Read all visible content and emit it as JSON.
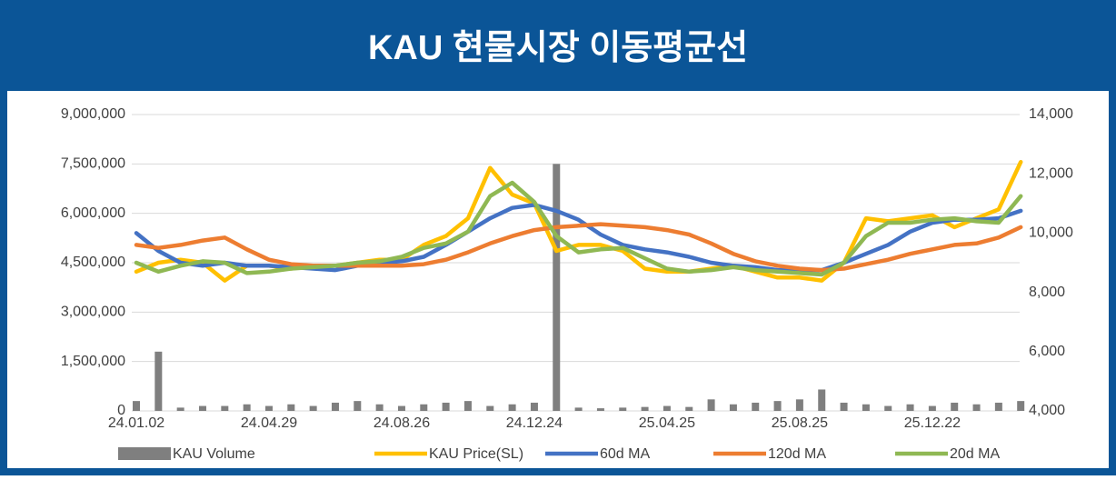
{
  "chart_data": {
    "type": "combo",
    "title": "KAU 현물시장 이동평균선",
    "categories": [
      "24.01.02",
      null,
      null,
      null,
      null,
      null,
      "24.04.29",
      null,
      null,
      null,
      null,
      null,
      "24.08.26",
      null,
      null,
      null,
      null,
      null,
      "24.12.24",
      null,
      null,
      null,
      null,
      null,
      "25.04.25",
      null,
      null,
      null,
      null,
      null,
      "25.08.25",
      null,
      null,
      null,
      null,
      null,
      "25.12.22",
      null,
      null,
      null,
      null
    ],
    "series": [
      {
        "name": "KAU Volume",
        "type": "bar",
        "axis": "y",
        "color": "#7f7f7f",
        "values": [
          300000,
          1800000,
          100000,
          150000,
          150000,
          200000,
          150000,
          200000,
          150000,
          250000,
          300000,
          200000,
          150000,
          200000,
          250000,
          300000,
          150000,
          200000,
          250000,
          7500000,
          100000,
          80000,
          100000,
          120000,
          150000,
          120000,
          350000,
          200000,
          250000,
          300000,
          350000,
          650000,
          250000,
          200000,
          150000,
          200000,
          150000,
          250000,
          200000,
          250000,
          300000
        ]
      },
      {
        "name": "KAU Price(SL)",
        "type": "line",
        "axis": "y2",
        "color": "#ffc000",
        "values": [
          8700,
          9000,
          9100,
          9000,
          8400,
          8900,
          8900,
          8800,
          8900,
          8900,
          9000,
          9100,
          9100,
          9600,
          9900,
          10500,
          12200,
          11300,
          11000,
          9400,
          9600,
          9600,
          9400,
          8800,
          8700,
          8700,
          8800,
          8900,
          8700,
          8500,
          8500,
          8400,
          9000,
          10500,
          10400,
          10500,
          10600,
          10200,
          10500,
          10800,
          12400
        ]
      },
      {
        "name": "60d MA",
        "type": "line",
        "axis": "y2",
        "color": "#4472c4",
        "values": [
          10000,
          9400,
          9000,
          8900,
          9000,
          8900,
          8900,
          8850,
          8800,
          8750,
          8900,
          9000,
          9050,
          9200,
          9600,
          10050,
          10500,
          10850,
          10950,
          10750,
          10450,
          9950,
          9600,
          9450,
          9350,
          9200,
          9000,
          8900,
          8850,
          8750,
          8750,
          8750,
          9000,
          9300,
          9600,
          10050,
          10350,
          10450,
          10450,
          10500,
          10750
        ]
      },
      {
        "name": "120d MA",
        "type": "line",
        "axis": "y2",
        "color": "#ed7d31",
        "values": [
          9600,
          9500,
          9600,
          9750,
          9850,
          9450,
          9100,
          8950,
          8900,
          8900,
          8900,
          8900,
          8900,
          8950,
          9100,
          9350,
          9650,
          9900,
          10100,
          10200,
          10250,
          10300,
          10250,
          10200,
          10100,
          9950,
          9650,
          9300,
          9050,
          8900,
          8800,
          8750,
          8800,
          8950,
          9100,
          9300,
          9450,
          9600,
          9650,
          9850,
          10200
        ]
      },
      {
        "name": "20d MA",
        "type": "line",
        "axis": "y2",
        "color": "#8fb853",
        "values": [
          9000,
          8700,
          8900,
          9050,
          9000,
          8650,
          8700,
          8800,
          8850,
          8900,
          9000,
          9050,
          9200,
          9500,
          9650,
          10050,
          11250,
          11700,
          11050,
          9900,
          9350,
          9450,
          9500,
          9150,
          8800,
          8700,
          8750,
          8850,
          8750,
          8700,
          8650,
          8600,
          9000,
          9900,
          10350,
          10350,
          10450,
          10500,
          10400,
          10350,
          11250
        ]
      }
    ],
    "ylim": [
      0,
      9000000
    ],
    "yticks": [
      0,
      {
        "value": 1500000,
        "label": "1,500,000"
      },
      {
        "value": 3000000,
        "label": "3,000,000"
      },
      {
        "value": 4500000,
        "label": "4,500,000"
      },
      {
        "value": 6000000,
        "label": "6,000,000"
      },
      {
        "value": 7500000,
        "label": "7,500,000"
      },
      {
        "value": 9000000,
        "label": "9,000,000"
      }
    ],
    "y2lim": [
      4000,
      14000
    ],
    "y2ticks": [
      {
        "value": 4000,
        "label": "4,000"
      },
      {
        "value": 6000,
        "label": "6,000"
      },
      {
        "value": 8000,
        "label": "8,000"
      },
      {
        "value": 10000,
        "label": "10,000"
      },
      {
        "value": 12000,
        "label": "12,000"
      },
      {
        "value": 14000,
        "label": "14,000"
      }
    ],
    "grid": true,
    "legend": "bottom"
  }
}
